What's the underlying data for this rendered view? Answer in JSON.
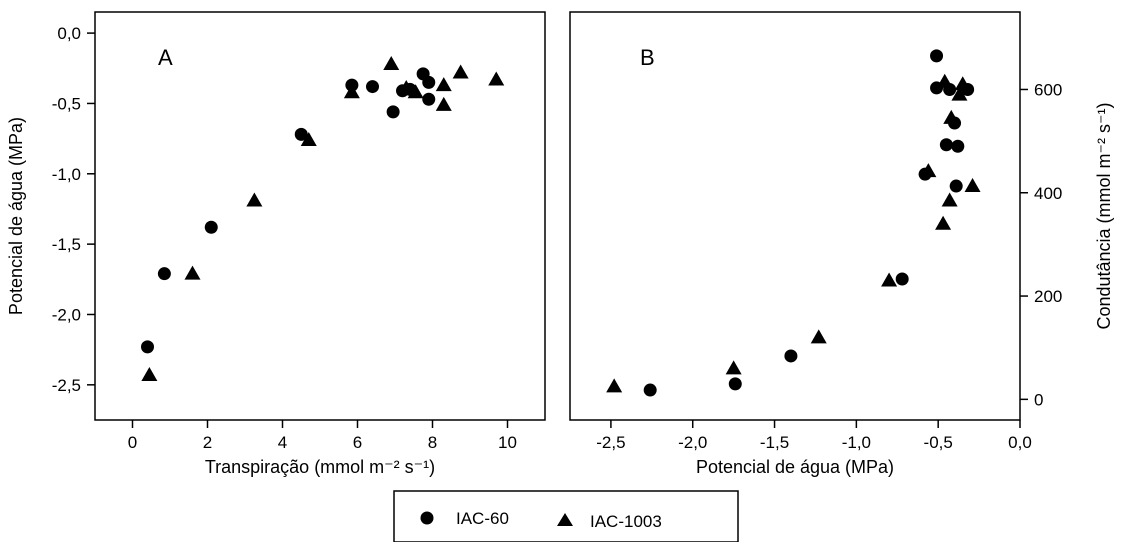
{
  "chart_data": [
    {
      "type": "scatter",
      "panel_label": "A",
      "xlabel": "Transpiração (mmol m⁻² s⁻¹)",
      "ylabel": "Potencial de água (MPa)",
      "xlim": [
        -1,
        11
      ],
      "ylim": [
        -2.75,
        0.15
      ],
      "xticks": [
        0,
        2,
        4,
        6,
        8,
        10
      ],
      "xtick_labels": [
        "0",
        "2",
        "4",
        "6",
        "8",
        "10"
      ],
      "yticks": [
        0,
        -0.5,
        -1.0,
        -1.5,
        -2.0,
        -2.5
      ],
      "ytick_labels": [
        "0,0",
        "-0,5",
        "-1,0",
        "-1,5",
        "-2,0",
        "-2,5"
      ],
      "series": [
        {
          "name": "IAC-60",
          "marker": "circle",
          "x": [
            0.4,
            0.85,
            2.1,
            4.5,
            5.85,
            6.4,
            6.95,
            7.2,
            7.4,
            7.75,
            7.9,
            7.9
          ],
          "y": [
            -2.23,
            -1.71,
            -1.38,
            -0.72,
            -0.37,
            -0.38,
            -0.56,
            -0.41,
            -0.4,
            -0.29,
            -0.47,
            -0.35
          ]
        },
        {
          "name": "IAC-1003",
          "marker": "triangle",
          "x": [
            0.45,
            1.6,
            3.25,
            4.7,
            5.85,
            6.9,
            7.3,
            7.55,
            8.3,
            8.3,
            8.75,
            9.7
          ],
          "y": [
            -2.43,
            -1.71,
            -1.19,
            -0.76,
            -0.42,
            -0.22,
            -0.39,
            -0.42,
            -0.51,
            -0.37,
            -0.28,
            -0.33
          ]
        }
      ]
    },
    {
      "type": "scatter",
      "panel_label": "B",
      "xlabel": "Potencial de água (MPa)",
      "ylabel": "Condutância (mmol m⁻² s⁻¹)",
      "xlim": [
        -2.75,
        0.0
      ],
      "ylim": [
        -40,
        750
      ],
      "xticks": [
        -2.5,
        -2.0,
        -1.5,
        -1.0,
        -0.5,
        0.0
      ],
      "xtick_labels": [
        "-2,5",
        "-2,0",
        "-1,5",
        "-1,0",
        "-0,5",
        "0,0"
      ],
      "yticks": [
        0,
        200,
        400,
        600
      ],
      "ytick_labels": [
        "0",
        "200",
        "400",
        "600"
      ],
      "series": [
        {
          "name": "IAC-60",
          "marker": "circle",
          "x": [
            -2.26,
            -1.74,
            -1.4,
            -0.72,
            -0.58,
            -0.51,
            -0.51,
            -0.45,
            -0.43,
            -0.4,
            -0.39,
            -0.38,
            -0.32
          ],
          "y": [
            18,
            30,
            84,
            233,
            436,
            665,
            603,
            493,
            600,
            535,
            413,
            490,
            600
          ],
          "note": "approximate"
        },
        {
          "name": "IAC-1003",
          "marker": "triangle",
          "x": [
            -2.48,
            -1.75,
            -1.23,
            -0.8,
            -0.56,
            -0.47,
            -0.46,
            -0.43,
            -0.42,
            -0.37,
            -0.35,
            -0.29
          ],
          "y": [
            25,
            60,
            120,
            230,
            442,
            340,
            615,
            385,
            545,
            590,
            610,
            413
          ]
        }
      ]
    }
  ],
  "legend": {
    "items": [
      {
        "label": "IAC-60",
        "marker": "circle"
      },
      {
        "label": "IAC-1003",
        "marker": "triangle"
      }
    ],
    "placement": "bottom-center"
  }
}
